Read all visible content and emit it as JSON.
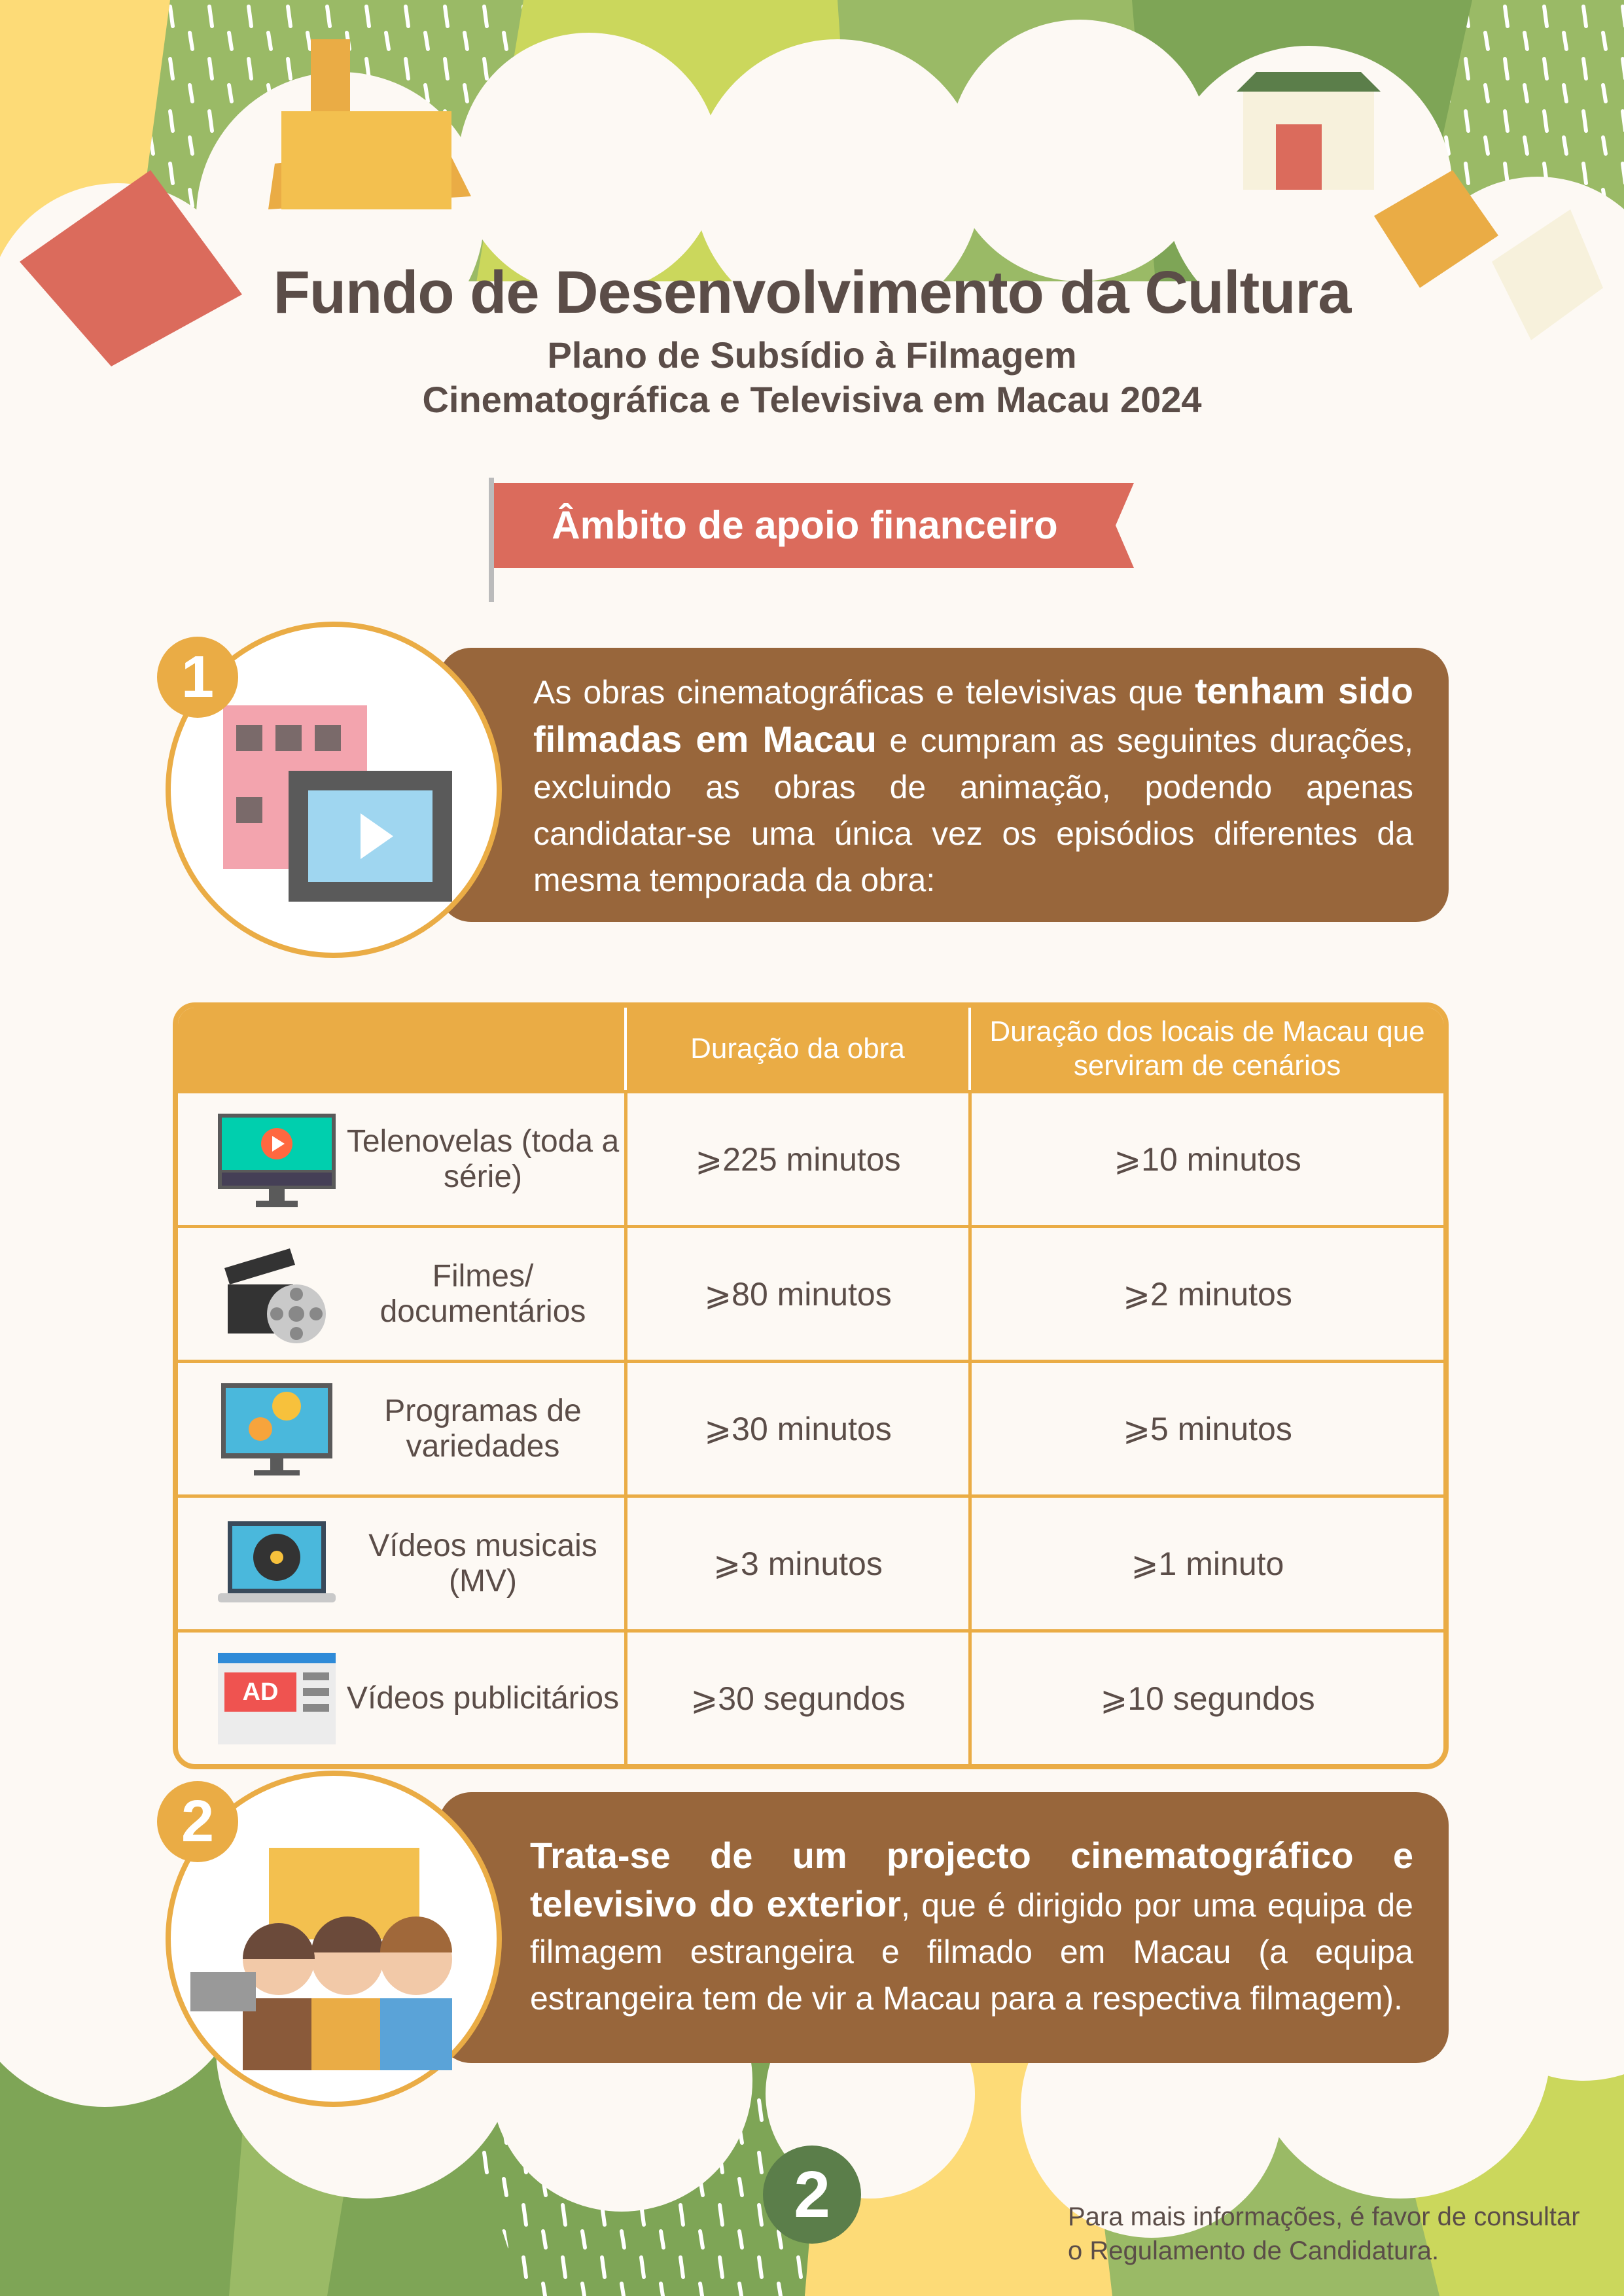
{
  "header": {
    "title": "Fundo de Desenvolvimento da Cultura",
    "subtitle_line1": "Plano de Subsídio à Filmagem",
    "subtitle_line2": "Cinematográfica e Televisiva em Macau 2024"
  },
  "banner": {
    "label": "Âmbito de apoio financeiro"
  },
  "section1": {
    "number": "1",
    "text_pre": "As obras cinematográficas e televisivas que ",
    "text_bold": "tenham sido filmadas em Macau",
    "text_post": " e cumpram as seguintes durações, excluindo as obras de animação, podendo apenas candidatar-se uma única vez os episódios diferentes da mesma temporada da obra:"
  },
  "table": {
    "headers": [
      "",
      "Duração da obra",
      "Duração dos locais de Macau que serviram de cenários"
    ],
    "rows": [
      {
        "icon": "tv-play-icon",
        "category": "Telenovelas (toda a série)",
        "duration": "⩾225 minutos",
        "location_duration": "⩾10 minutos"
      },
      {
        "icon": "clapperboard-film-reel-icon",
        "category": "Filmes/ documentários",
        "duration": "⩾80 minutos",
        "location_duration": "⩾2 minutos"
      },
      {
        "icon": "monitor-smiley-icon",
        "category": "Programas de variedades",
        "duration": "⩾30 minutos",
        "location_duration": "⩾5 minutos"
      },
      {
        "icon": "laptop-vinyl-icon",
        "category": "Vídeos musicais (MV)",
        "duration": "⩾3 minutos",
        "location_duration": "⩾1 minuto"
      },
      {
        "icon": "ad-browser-icon",
        "category": "Vídeos publicitários",
        "duration": "⩾30 segundos",
        "location_duration": "⩾10 segundos"
      }
    ],
    "ad_icon_label": "AD"
  },
  "section2": {
    "number": "2",
    "text_bold": "Trata-se de um projecto cinematográfico e televisivo do exterior",
    "text_post": ", que é dirigido por uma equipa de filmagem estrangeira e filmado em Macau (a equipa estrangeira tem de vir a Macau para a respectiva filmagem)."
  },
  "footer": {
    "page_number": "2",
    "note_line1": "Para mais informações, é favor de consultar",
    "note_line2": "o Regulamento de Candidatura."
  },
  "colors": {
    "accent_orange": "#eaac45",
    "brown": "#98663b",
    "banner_red": "#db6b5c",
    "green_dark": "#5b7e4a",
    "green": "#9aba66",
    "lime": "#cbd75c",
    "yellow": "#fddb77",
    "cream": "#fdf9f4",
    "text": "#5b4d48"
  }
}
